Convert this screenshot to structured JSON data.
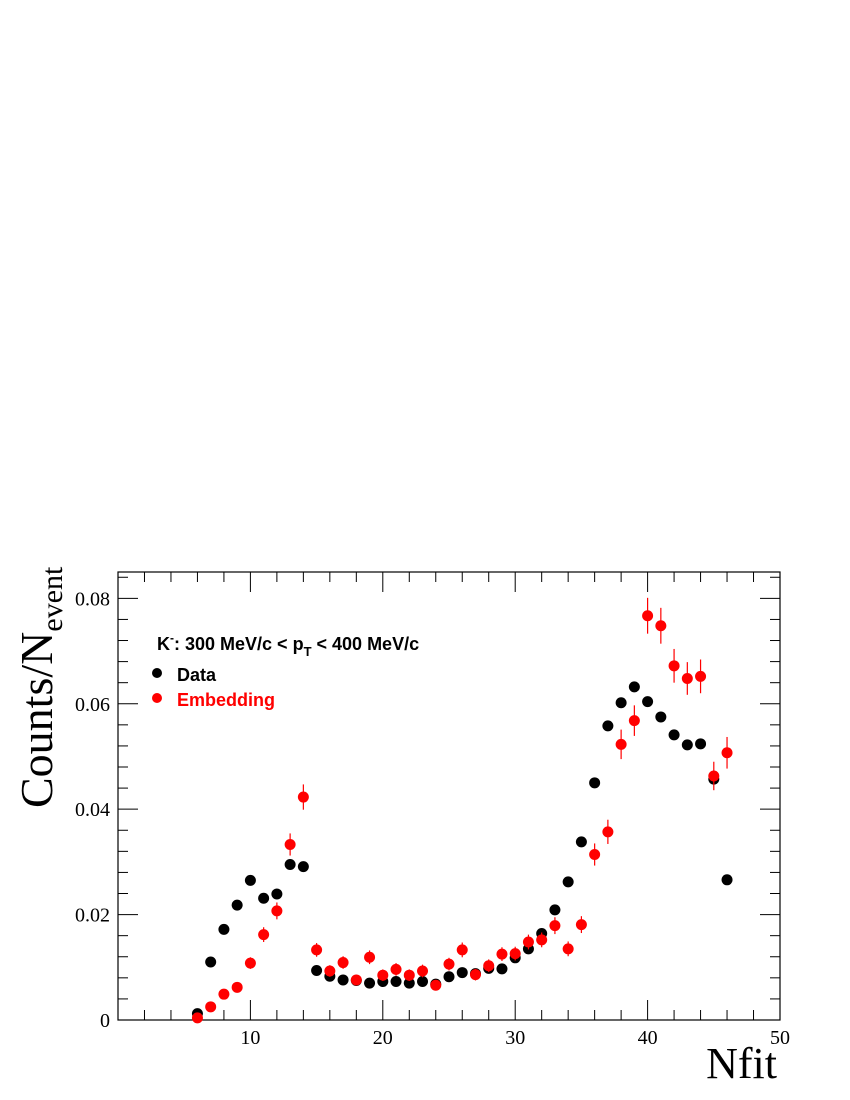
{
  "chart_data": {
    "type": "scatter",
    "xlabel": "Nfit",
    "ylabel_main": "Counts/N",
    "ylabel_sub": "event",
    "xlim": [
      0,
      50
    ],
    "ylim": [
      0,
      0.085
    ],
    "xticks": [
      10,
      20,
      30,
      40,
      50
    ],
    "yticks": [
      0,
      0.02,
      0.04,
      0.06,
      0.08
    ],
    "ytick_labels": [
      "0",
      "0.02",
      "0.04",
      "0.06",
      "0.08"
    ],
    "grid": false,
    "legend_position": "top-left",
    "annotation": {
      "particle": "K",
      "charge": "-",
      "part1": ": 300 MeV/c < p",
      "sub": "T",
      "part2": " < 400 MeV/c"
    },
    "series": [
      {
        "name": "Data",
        "color": "#000000",
        "x": [
          6,
          7,
          8,
          9,
          10,
          11,
          12,
          13,
          14,
          15,
          16,
          17,
          18,
          19,
          20,
          21,
          22,
          23,
          24,
          25,
          26,
          27,
          28,
          29,
          30,
          31,
          32,
          33,
          34,
          35,
          36,
          37,
          38,
          39,
          40,
          41,
          42,
          43,
          44,
          45,
          46
        ],
        "y": [
          0.0012,
          0.011,
          0.0172,
          0.0218,
          0.0265,
          0.0231,
          0.0239,
          0.0295,
          0.0291,
          0.0094,
          0.0083,
          0.0076,
          0.0075,
          0.007,
          0.0073,
          0.0073,
          0.007,
          0.0073,
          0.0068,
          0.0082,
          0.009,
          0.0088,
          0.0098,
          0.0097,
          0.0118,
          0.0135,
          0.0164,
          0.0209,
          0.0262,
          0.0338,
          0.045,
          0.0558,
          0.0602,
          0.0632,
          0.0604,
          0.0575,
          0.0541,
          0.0522,
          0.0524,
          0.0457,
          0.0266
        ],
        "err": [
          0.0002,
          0.0004,
          0.0004,
          0.0005,
          0.0005,
          0.0005,
          0.0005,
          0.0005,
          0.0005,
          0.0003,
          0.0003,
          0.0003,
          0.0003,
          0.0003,
          0.0003,
          0.0003,
          0.0003,
          0.0003,
          0.0003,
          0.0003,
          0.0003,
          0.0003,
          0.0003,
          0.0003,
          0.0004,
          0.0004,
          0.0004,
          0.0005,
          0.0005,
          0.0005,
          0.0006,
          0.0007,
          0.0007,
          0.0007,
          0.0007,
          0.0007,
          0.0006,
          0.0006,
          0.0006,
          0.0006,
          0.0004
        ]
      },
      {
        "name": "Embedding",
        "color": "#ff0000",
        "x": [
          6,
          7,
          8,
          9,
          10,
          11,
          12,
          13,
          14,
          15,
          16,
          17,
          18,
          19,
          20,
          21,
          22,
          23,
          24,
          25,
          26,
          27,
          28,
          29,
          30,
          31,
          32,
          33,
          34,
          35,
          36,
          37,
          38,
          39,
          40,
          41,
          42,
          43,
          44,
          45,
          46
        ],
        "y": [
          0.0004,
          0.0025,
          0.0049,
          0.0062,
          0.0108,
          0.0162,
          0.0207,
          0.0333,
          0.0423,
          0.0133,
          0.0093,
          0.0109,
          0.0076,
          0.0119,
          0.0085,
          0.0096,
          0.0085,
          0.0093,
          0.0066,
          0.0106,
          0.0133,
          0.0086,
          0.0103,
          0.0125,
          0.0126,
          0.0148,
          0.0152,
          0.0179,
          0.0135,
          0.0181,
          0.0314,
          0.0357,
          0.0523,
          0.0568,
          0.0767,
          0.0748,
          0.0672,
          0.0648,
          0.0652,
          0.0463,
          0.0507
        ],
        "err": [
          0.0003,
          0.0005,
          0.0007,
          0.0008,
          0.0011,
          0.0014,
          0.0016,
          0.0021,
          0.0024,
          0.0013,
          0.0011,
          0.0012,
          0.001,
          0.0013,
          0.0011,
          0.0012,
          0.0011,
          0.0012,
          0.001,
          0.0012,
          0.0014,
          0.0011,
          0.0012,
          0.0013,
          0.0013,
          0.0014,
          0.0014,
          0.0016,
          0.0014,
          0.0016,
          0.0021,
          0.0023,
          0.0028,
          0.0029,
          0.0034,
          0.0034,
          0.0032,
          0.0031,
          0.0032,
          0.0027,
          0.003
        ]
      }
    ]
  }
}
